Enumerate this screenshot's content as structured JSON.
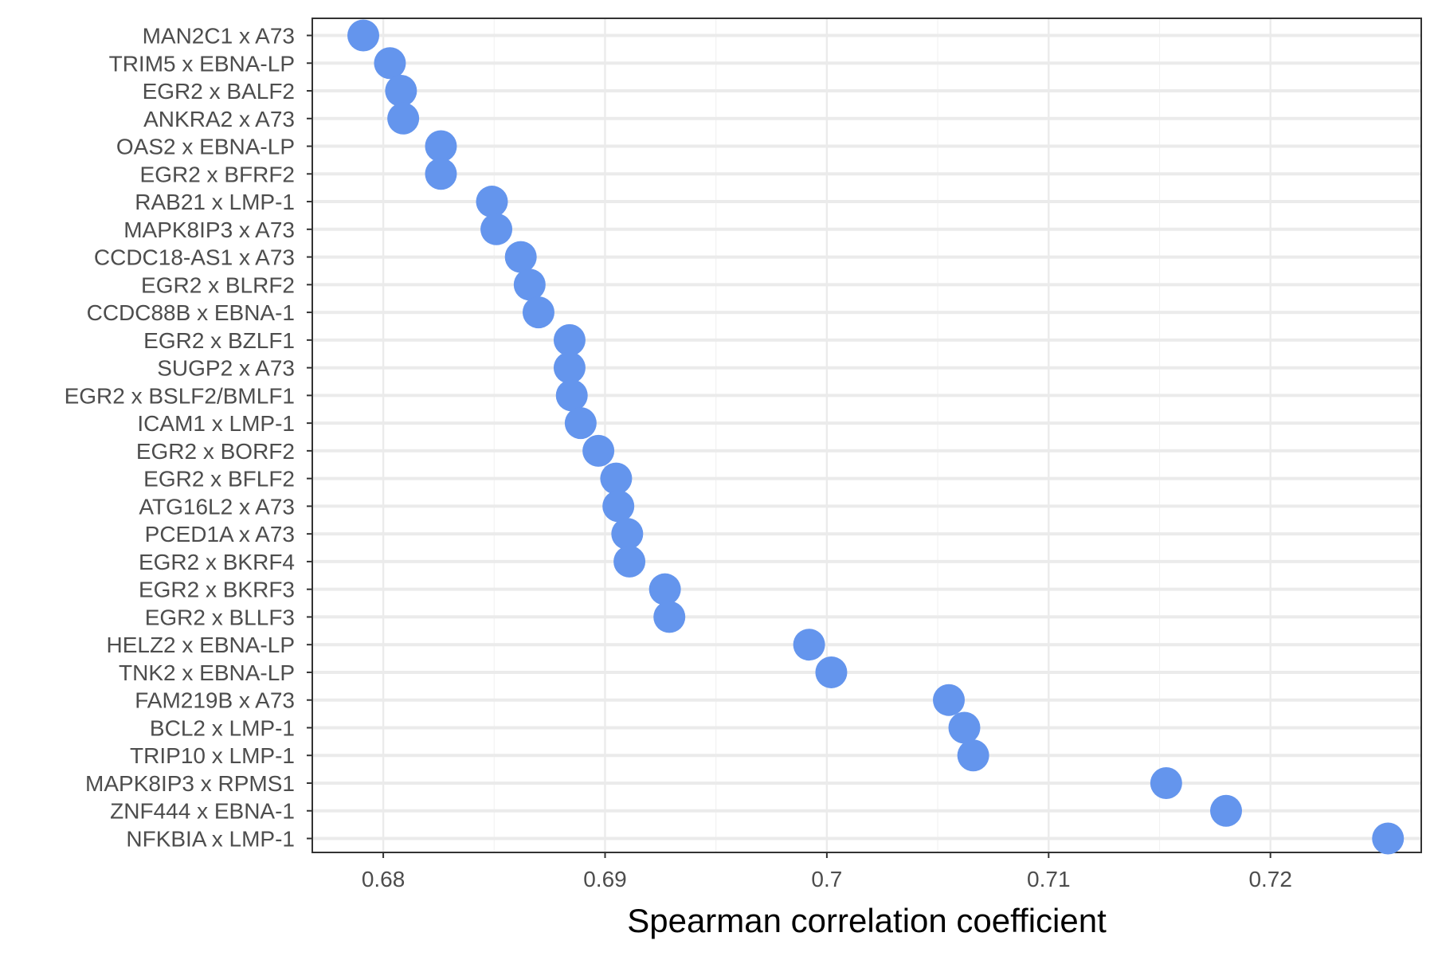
{
  "chart_data": {
    "type": "scatter",
    "title": "",
    "xlabel": "Spearman correlation coefficient",
    "ylabel": "",
    "xlim": [
      0.6768,
      0.7268
    ],
    "xticks": [
      0.68,
      0.69,
      0.7,
      0.71,
      0.72
    ],
    "xtick_labels": [
      "0.68",
      "0.69",
      "0.7",
      "0.71",
      "0.72"
    ],
    "grid": true,
    "legend": "none",
    "point_color": "#6495ED",
    "categories": [
      "MAN2C1 x A73",
      "TRIM5 x EBNA-LP",
      "EGR2 x BALF2",
      "ANKRA2 x A73",
      "OAS2 x EBNA-LP",
      "EGR2 x BFRF2",
      "RAB21 x LMP-1",
      "MAPK8IP3 x A73",
      "CCDC18-AS1 x A73",
      "EGR2 x BLRF2",
      "CCDC88B x EBNA-1",
      "EGR2 x BZLF1",
      "SUGP2 x A73",
      "EGR2 x BSLF2/BMLF1",
      "ICAM1 x LMP-1",
      "EGR2 x BORF2",
      "EGR2 x BFLF2",
      "ATG16L2 x A73",
      "PCED1A x A73",
      "EGR2 x BKRF4",
      "EGR2 x BKRF3",
      "EGR2 x BLLF3",
      "HELZ2 x EBNA-LP",
      "TNK2 x EBNA-LP",
      "FAM219B x A73",
      "BCL2 x LMP-1",
      "TRIP10 x LMP-1",
      "MAPK8IP3 x RPMS1",
      "ZNF444 x EBNA-1",
      "NFKBIA x LMP-1"
    ],
    "values": [
      0.6791,
      0.6803,
      0.6808,
      0.6809,
      0.6826,
      0.6826,
      0.6849,
      0.6851,
      0.6862,
      0.6866,
      0.687,
      0.6884,
      0.6884,
      0.6885,
      0.6889,
      0.6897,
      0.6905,
      0.6906,
      0.691,
      0.6911,
      0.6927,
      0.6929,
      0.6992,
      0.7002,
      0.7055,
      0.7062,
      0.7066,
      0.7153,
      0.718,
      0.7253
    ]
  }
}
